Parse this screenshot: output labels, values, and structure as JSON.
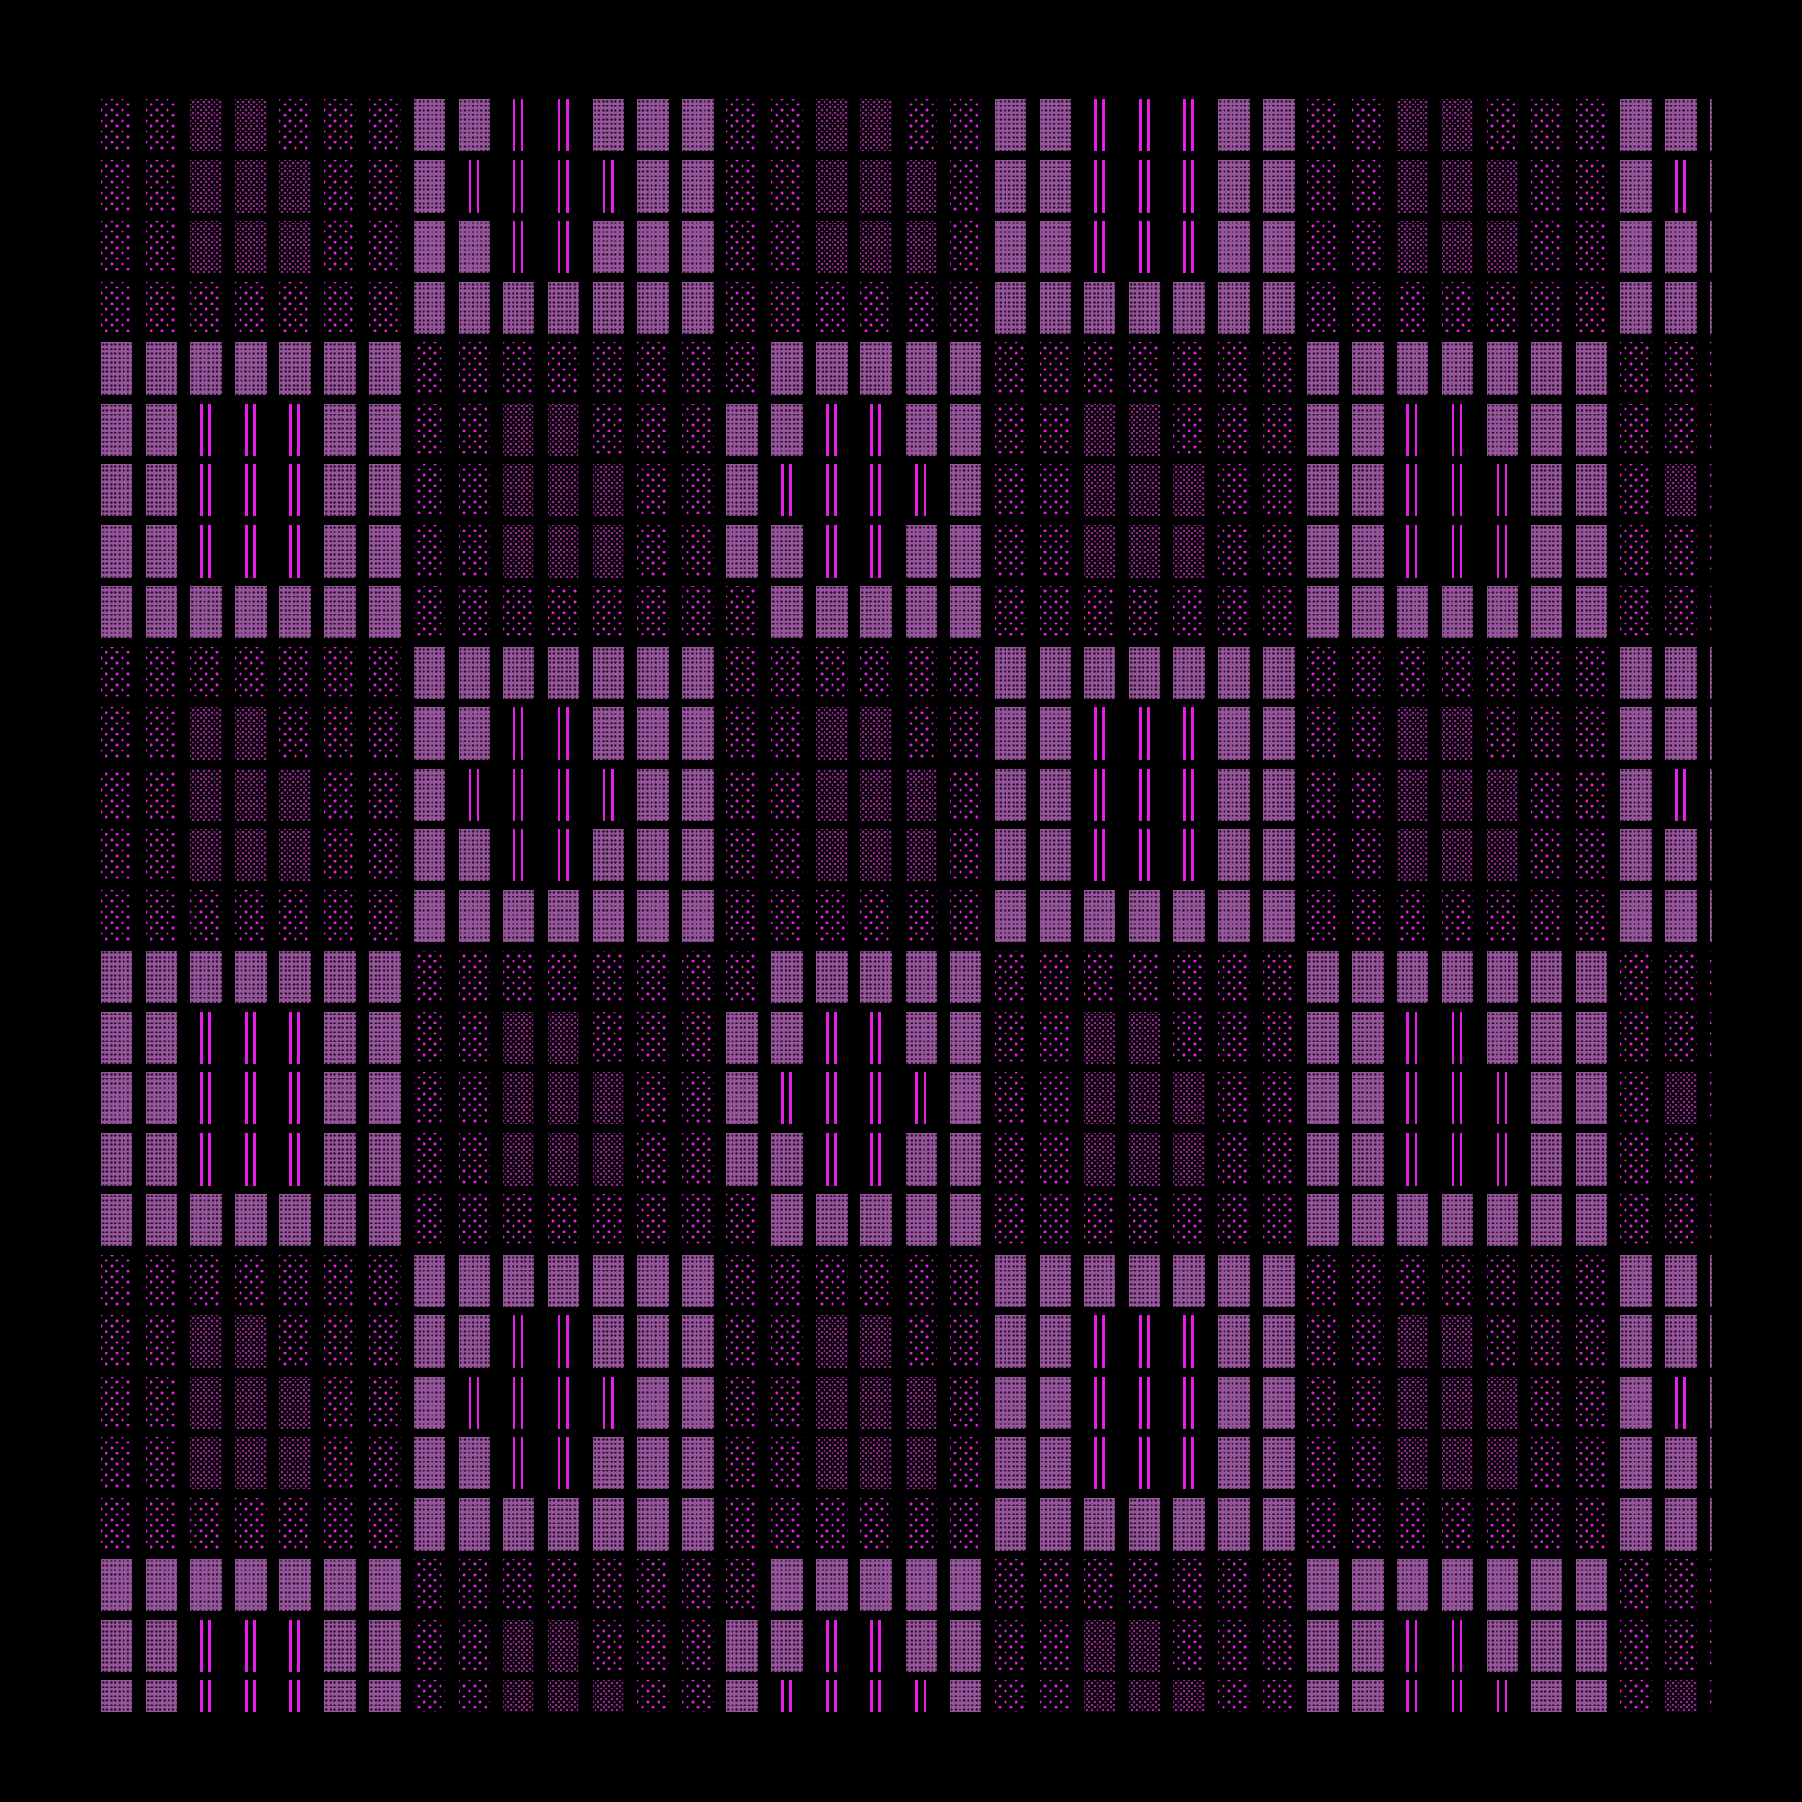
{
  "colors": {
    "background": "#000000",
    "solid_cell": "#95559a",
    "dot_bright": "#e41ee4",
    "dot_dim": "#8e2a8e",
    "line": "#e81ee8"
  },
  "legend_codes": {
    "s": "solid-textured",
    "d": "sparse-dots",
    "m": "dense-dim-dots",
    "l": "double-line"
  },
  "rows": [
    "ddmmdddssllsssddmmddsslllssddmmdddsss",
    "ddmmmddsllllssddmmmdsslllssddmmmddsls",
    "ddmmmddssllsssddmmmdsslllssddmmmddsss",
    "dddddddsssssssddddddsssssssdddddddsss",
    "sssssssddddddddsssssdddddddsssssssddd",
    "sslllssddmmdddssllssddmmdddssllsssddd",
    "sslllssddmmmddsllllsddmmmddsslllssdmd",
    "sslllssddmmmddssllssddmmmddsslllssddd",
    "sssssssddddddddsssssdddddddsssssssddd",
    "dddddddsssssssddddddsssssssdddddddsss",
    "ddmmdddssllsssddmmddsslllssddmmdddsss",
    "ddmmmddsllllssddmmmdsslllssddmmmddsls",
    "ddmmmddssllsssddmmmdsslllssddmmmddsss",
    "dddddddsssssssddddddsssssssdddddddsss",
    "sssssssddddddddsssssdddddddsssssssddd",
    "sslllssddmmdddssllssddmmdddssllsssddd",
    "sslllssddmmmddsllllsddmmmddsslllssdmd",
    "sslllssddmmmddssllssddmmmddsslllssddd",
    "sssssssddddddddsssssdddddddsssssssddd",
    "dddddddsssssssddddddsssssssdddddddsss",
    "ddmmdddssllsssddmmddsslllssddmmdddsss",
    "ddmmmddsllllssddmmmdsslllssddmmmddsls",
    "ddmmmddssllsssddmmmdsslllssddmmmddsss",
    "dddddddsssssssddddddsssssssdddddddsss",
    "sssssssddddddddsssssdddddddsssssssddd",
    "sslllssddmmdddssllssddmmdddssllsssddd",
    "sslllssddmmmddsllllsddmmmddsslllssdmd"
  ]
}
